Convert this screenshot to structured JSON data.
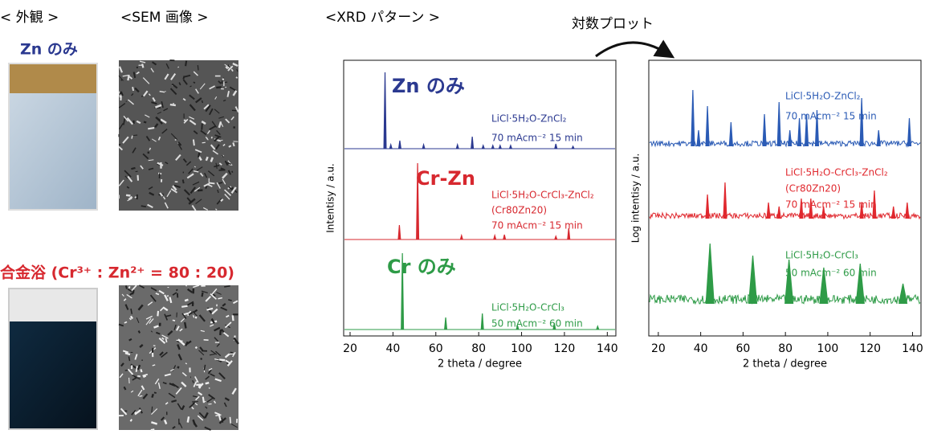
{
  "headers": {
    "appearance": "< 外観 >",
    "sem": "<SEM 画像 >",
    "xrd": "<XRD パターン >",
    "log_plot": "対数プロット"
  },
  "samples": [
    {
      "label": "Zn のみ"
    },
    {
      "label": "合金浴 (Cr³⁺ : Zn²⁺ = 80 : 20)"
    }
  ],
  "chart_data": [
    {
      "type": "line",
      "xlabel": "2 theta / degree",
      "ylabel": "Intentisy / a.u.",
      "xlim": [
        17,
        144
      ],
      "xticks": [
        20,
        40,
        60,
        80,
        100,
        120,
        140
      ],
      "annotations": [
        "Zn のみ",
        "Cr-Zn",
        "Cr のみ"
      ],
      "series": [
        {
          "name": "LiCl·5H₂O-ZnCl₂",
          "conditions": [
            "70 mAcm⁻²  15 min"
          ],
          "color": "#2b3990",
          "x": [
            36.3,
            39,
            43.2,
            54.3,
            70.1,
            77,
            82.1,
            86.6,
            90,
            94.9,
            116,
            124
          ],
          "values": [
            95,
            5,
            10,
            5,
            5,
            15,
            4,
            4,
            4,
            4,
            6,
            3
          ]
        },
        {
          "name": "LiCl·5H₂O-CrCl₃-ZnCl₂",
          "conditions": [
            "(Cr80Zn20)",
            "70 mAcm⁻²  15 min"
          ],
          "color": "#d7282f",
          "x": [
            43,
            51.5,
            72,
            87.5,
            92,
            116,
            122
          ],
          "values": [
            18,
            95,
            5,
            5,
            6,
            4,
            14
          ]
        },
        {
          "name": "LiCl·5H₂O-CrCl₃",
          "conditions": [
            "50 mAcm⁻²  60 min"
          ],
          "color": "#2e9b47",
          "x": [
            44.4,
            64.6,
            81.7,
            98.1,
            115.3,
            135.5
          ],
          "values": [
            95,
            15,
            20,
            5,
            8,
            4
          ]
        }
      ]
    },
    {
      "type": "line",
      "xlabel": "2 theta / degree",
      "ylabel": "Log intentisy / a.u.",
      "log_scale": true,
      "xlim": [
        15.5,
        144
      ],
      "xticks": [
        20,
        40,
        60,
        80,
        100,
        120,
        140
      ],
      "series": [
        {
          "name": "LiCl·5H₂O-ZnCl₂",
          "conditions": [
            "70 mAcm⁻²  15 min"
          ],
          "color": "#2b5bb5",
          "x": [
            36.3,
            39,
            43.2,
            54.3,
            70.1,
            77,
            82.1,
            86.6,
            90,
            94.9,
            116,
            124,
            138.5
          ],
          "values": [
            70,
            20,
            50,
            30,
            40,
            55,
            20,
            35,
            40,
            45,
            60,
            20,
            35
          ]
        },
        {
          "name": "LiCl·5H₂O-CrCl₃-ZnCl₂",
          "conditions": [
            "(Cr80Zn20)",
            "70 mAcm⁻²  15 min"
          ],
          "color": "#e0282e",
          "x": [
            43.2,
            51.5,
            72,
            77,
            87.5,
            92,
            98,
            116,
            122,
            131,
            137.5
          ],
          "values": [
            30,
            45,
            20,
            15,
            25,
            25,
            15,
            20,
            35,
            15,
            20
          ]
        },
        {
          "name": "LiCl·5H₂O-CrCl₃",
          "conditions": [
            "50 mAcm⁻²  60 min"
          ],
          "color": "#2e9b47",
          "x": [
            44.4,
            64.6,
            81.7,
            98.1,
            115.3,
            135.5
          ],
          "values": [
            75,
            60,
            55,
            45,
            50,
            25
          ]
        }
      ]
    }
  ]
}
